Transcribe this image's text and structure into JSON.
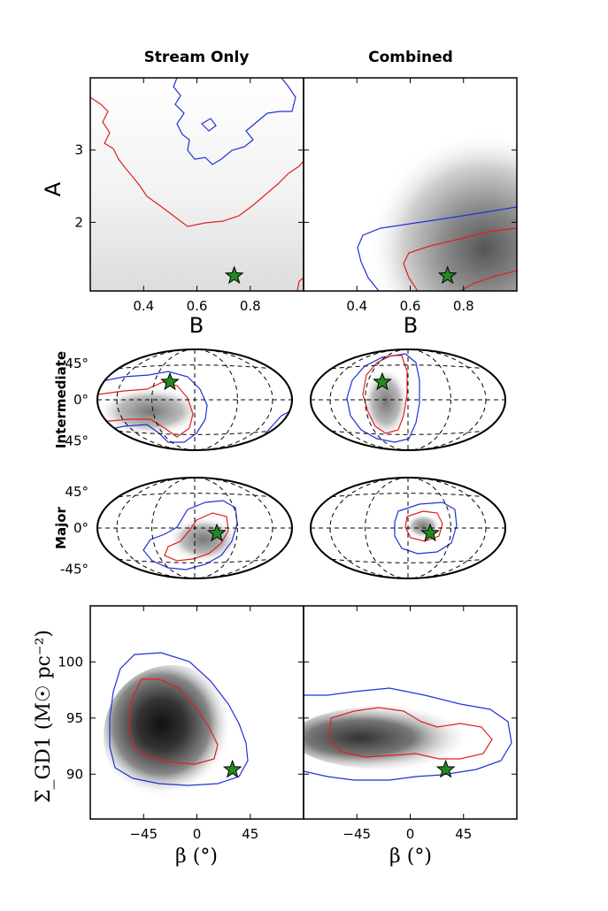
{
  "column_titles": [
    "Stream Only",
    "Combined"
  ],
  "row_labels": {
    "intermediate": "Intermediate",
    "major": "Major"
  },
  "colors": {
    "contour_outer": "#2030d8",
    "contour_inner": "#e02020",
    "star": "#228b22",
    "frame": "#000000"
  },
  "chart_data": [
    {
      "type": "heatmap",
      "id": "ab",
      "panels": [
        "Stream Only",
        "Combined"
      ],
      "xlabel": "B",
      "ylabel": "A",
      "xlim": [
        0.2,
        1.0
      ],
      "ylim": [
        1.05,
        4.0
      ],
      "xticks": [
        0.4,
        0.6,
        0.8
      ],
      "xtick_labels": [
        "0.4",
        "0.6",
        "0.8"
      ],
      "yticks": [
        2,
        3
      ],
      "ytick_labels": [
        "2",
        "3"
      ],
      "true_value": {
        "x": 0.74,
        "y": 1.26
      },
      "contour_levels": [
        "outer (blue)",
        "inner (red)"
      ]
    },
    {
      "type": "heatmap",
      "id": "orientation",
      "projection": "hammer",
      "rows": [
        "Intermediate",
        "Major"
      ],
      "panels": [
        "Stream Only",
        "Combined"
      ],
      "ytick_labels": [
        "45°",
        "0°",
        "-45°"
      ],
      "true_value_intermediate": {
        "lon": -25,
        "lat": 20
      },
      "true_value_major": {
        "lon": 25,
        "lat": -5
      }
    },
    {
      "type": "heatmap",
      "id": "beta-sigma",
      "panels": [
        "Stream Only",
        "Combined"
      ],
      "xlabel": "β (°)",
      "ylabel": "Σ_GD1 (M☉ pc⁻²)",
      "xlim": [
        -90,
        90
      ],
      "ylim": [
        86,
        105
      ],
      "xticks": [
        -45,
        0,
        45
      ],
      "xtick_labels": [
        "−45",
        "0",
        "45"
      ],
      "yticks": [
        90,
        95,
        100
      ],
      "ytick_labels": [
        "90",
        "95",
        "100"
      ],
      "true_value": {
        "x": 30,
        "y": 90.4
      }
    }
  ]
}
